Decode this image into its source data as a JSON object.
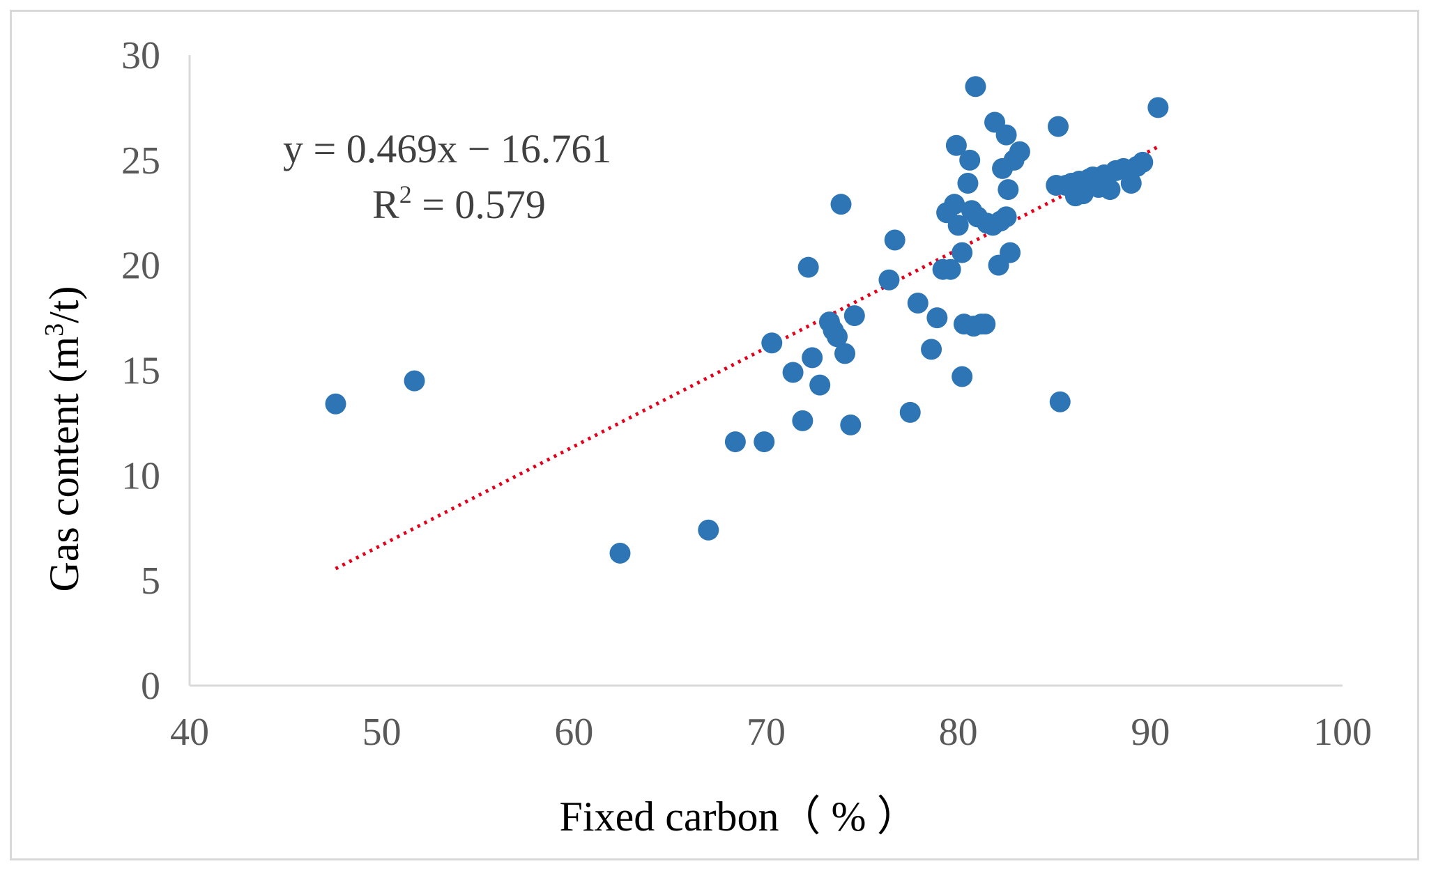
{
  "chart_data": {
    "type": "scatter",
    "xlabel": "Fixed carbon（ % ）",
    "ylabel_main": "Gas content (m",
    "ylabel_sup": "3",
    "ylabel_end": "/t)",
    "xlim": [
      40,
      100
    ],
    "ylim": [
      0,
      30
    ],
    "xticks": [
      40,
      50,
      60,
      70,
      80,
      90,
      100
    ],
    "yticks": [
      0,
      5,
      10,
      15,
      20,
      25,
      30
    ],
    "grid": false,
    "legend": "none",
    "series": [
      {
        "marker_color": "#2e75b6",
        "points": [
          [
            47.6,
            13.4
          ],
          [
            51.7,
            14.5
          ],
          [
            62.4,
            6.3
          ],
          [
            67.0,
            7.4
          ],
          [
            68.4,
            11.6
          ],
          [
            69.9,
            11.6
          ],
          [
            70.3,
            16.3
          ],
          [
            71.4,
            14.9
          ],
          [
            71.9,
            12.6
          ],
          [
            72.2,
            19.9
          ],
          [
            72.4,
            15.6
          ],
          [
            72.8,
            14.3
          ],
          [
            73.3,
            17.3
          ],
          [
            73.5,
            16.9
          ],
          [
            73.7,
            16.6
          ],
          [
            73.9,
            22.9
          ],
          [
            74.1,
            15.8
          ],
          [
            74.4,
            12.4
          ],
          [
            74.6,
            17.6
          ],
          [
            76.4,
            19.3
          ],
          [
            76.7,
            21.2
          ],
          [
            77.5,
            13.0
          ],
          [
            77.9,
            18.2
          ],
          [
            78.6,
            16.0
          ],
          [
            78.9,
            17.5
          ],
          [
            79.2,
            19.8
          ],
          [
            79.4,
            22.5
          ],
          [
            79.6,
            19.8
          ],
          [
            79.8,
            22.9
          ],
          [
            79.9,
            25.7
          ],
          [
            80.0,
            21.9
          ],
          [
            80.2,
            20.6
          ],
          [
            80.2,
            14.7
          ],
          [
            80.3,
            17.2
          ],
          [
            80.5,
            23.9
          ],
          [
            80.6,
            25.0
          ],
          [
            80.7,
            22.6
          ],
          [
            80.8,
            17.1
          ],
          [
            80.9,
            28.5
          ],
          [
            81.0,
            22.3
          ],
          [
            81.2,
            17.2
          ],
          [
            81.4,
            17.2
          ],
          [
            81.5,
            22.0
          ],
          [
            81.8,
            21.9
          ],
          [
            81.9,
            26.8
          ],
          [
            82.1,
            20.0
          ],
          [
            82.2,
            22.1
          ],
          [
            82.3,
            24.6
          ],
          [
            82.5,
            26.2
          ],
          [
            82.5,
            22.3
          ],
          [
            82.6,
            23.6
          ],
          [
            82.7,
            20.6
          ],
          [
            82.9,
            25.0
          ],
          [
            83.2,
            25.4
          ],
          [
            85.1,
            23.8
          ],
          [
            85.2,
            26.6
          ],
          [
            85.3,
            13.5
          ],
          [
            85.6,
            23.8
          ],
          [
            85.9,
            23.9
          ],
          [
            86.1,
            23.3
          ],
          [
            86.3,
            24.0
          ],
          [
            86.5,
            23.4
          ],
          [
            86.8,
            24.1
          ],
          [
            87.0,
            24.2
          ],
          [
            87.3,
            23.7
          ],
          [
            87.6,
            24.3
          ],
          [
            87.9,
            23.6
          ],
          [
            88.2,
            24.5
          ],
          [
            88.6,
            24.6
          ],
          [
            89.0,
            23.9
          ],
          [
            89.3,
            24.7
          ],
          [
            89.6,
            24.9
          ],
          [
            90.4,
            27.5
          ]
        ]
      }
    ],
    "trendline": {
      "type": "linear",
      "slope": 0.469,
      "intercept": -16.761,
      "x_range": [
        47.6,
        90.4
      ],
      "color": "#e3001b",
      "style": "dotted"
    },
    "annotations": {
      "equation": "y = 0.469x − 16.761",
      "r2_prefix": "R",
      "r2_sup": "2",
      "r2_value": " = 0.579"
    },
    "colors": {
      "axis_line": "#d9d9d9",
      "tick_text": "#595959",
      "frame": "#d9d9d9"
    }
  }
}
